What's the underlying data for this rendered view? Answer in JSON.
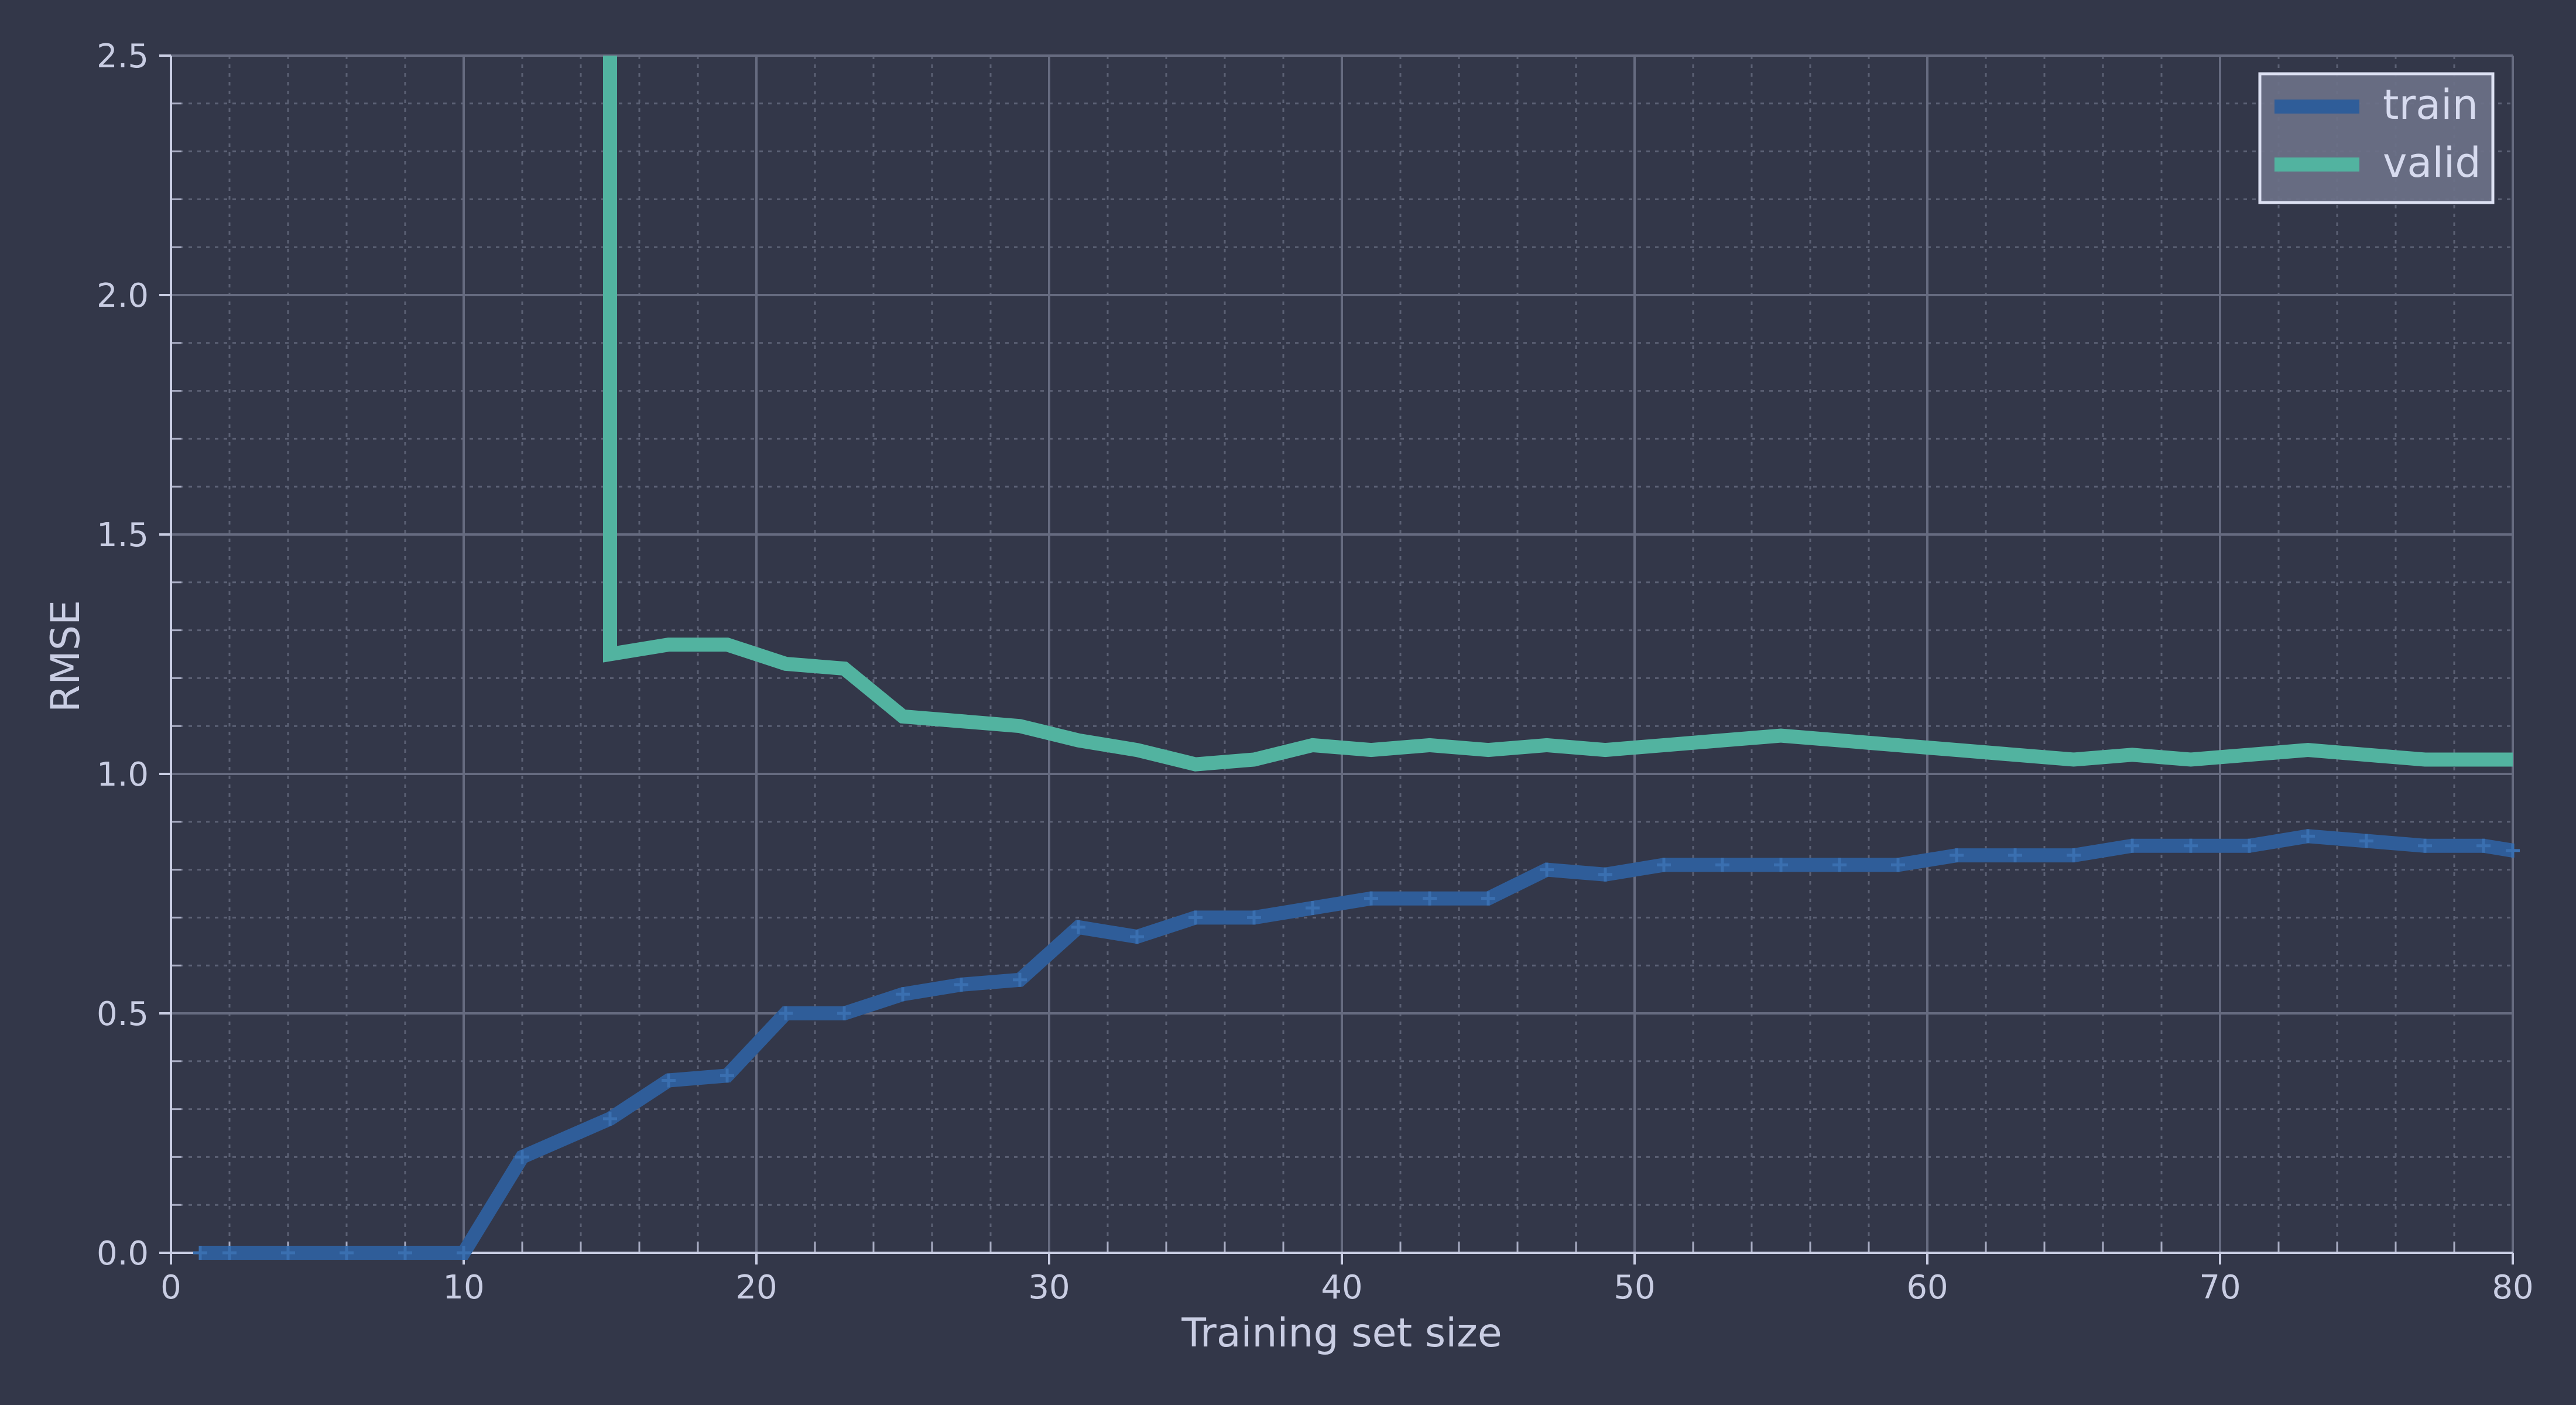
{
  "chart_data": {
    "type": "line",
    "title": "",
    "xlabel": "Training set size",
    "ylabel": "RMSE",
    "xlim": [
      0,
      80
    ],
    "ylim": [
      0,
      2.5
    ],
    "xticks": [
      0,
      10,
      20,
      30,
      40,
      50,
      60,
      70,
      80
    ],
    "yticks": [
      0.0,
      0.5,
      1.0,
      1.5,
      2.0,
      2.5
    ],
    "ytick_labels": [
      "0.0",
      "0.5",
      "1.0",
      "1.5",
      "2.0",
      "2.5"
    ],
    "grid": true,
    "legend_position": "top-right",
    "series": [
      {
        "name": "train",
        "color": "#2f5d99",
        "marker": "plus",
        "x": [
          1,
          2,
          4,
          6,
          8,
          10,
          12,
          15,
          17,
          19,
          21,
          23,
          25,
          27,
          29,
          31,
          33,
          35,
          37,
          39,
          41,
          43,
          45,
          47,
          49,
          51,
          53,
          55,
          57,
          59,
          61,
          63,
          65,
          67,
          69,
          71,
          73,
          75,
          77,
          79,
          80
        ],
        "y": [
          0.0,
          0.0,
          0.0,
          0.0,
          0.0,
          0.0,
          0.2,
          0.28,
          0.36,
          0.37,
          0.5,
          0.5,
          0.54,
          0.56,
          0.57,
          0.68,
          0.66,
          0.7,
          0.7,
          0.72,
          0.74,
          0.74,
          0.74,
          0.8,
          0.79,
          0.81,
          0.81,
          0.81,
          0.81,
          0.81,
          0.83,
          0.83,
          0.83,
          0.85,
          0.85,
          0.85,
          0.87,
          0.86,
          0.85,
          0.85,
          0.84
        ]
      },
      {
        "name": "valid",
        "color": "#52b3a0",
        "marker": "none",
        "x": [
          15,
          15,
          17,
          19,
          21,
          23,
          25,
          27,
          29,
          31,
          33,
          35,
          37,
          39,
          41,
          43,
          45,
          47,
          49,
          51,
          53,
          55,
          57,
          59,
          61,
          63,
          65,
          67,
          69,
          71,
          73,
          75,
          77,
          79,
          80
        ],
        "y": [
          2.5,
          1.25,
          1.27,
          1.27,
          1.23,
          1.22,
          1.12,
          1.11,
          1.1,
          1.07,
          1.05,
          1.02,
          1.03,
          1.06,
          1.05,
          1.06,
          1.05,
          1.06,
          1.05,
          1.06,
          1.07,
          1.08,
          1.07,
          1.06,
          1.05,
          1.04,
          1.03,
          1.04,
          1.03,
          1.04,
          1.05,
          1.04,
          1.03,
          1.03,
          1.03
        ]
      }
    ]
  }
}
